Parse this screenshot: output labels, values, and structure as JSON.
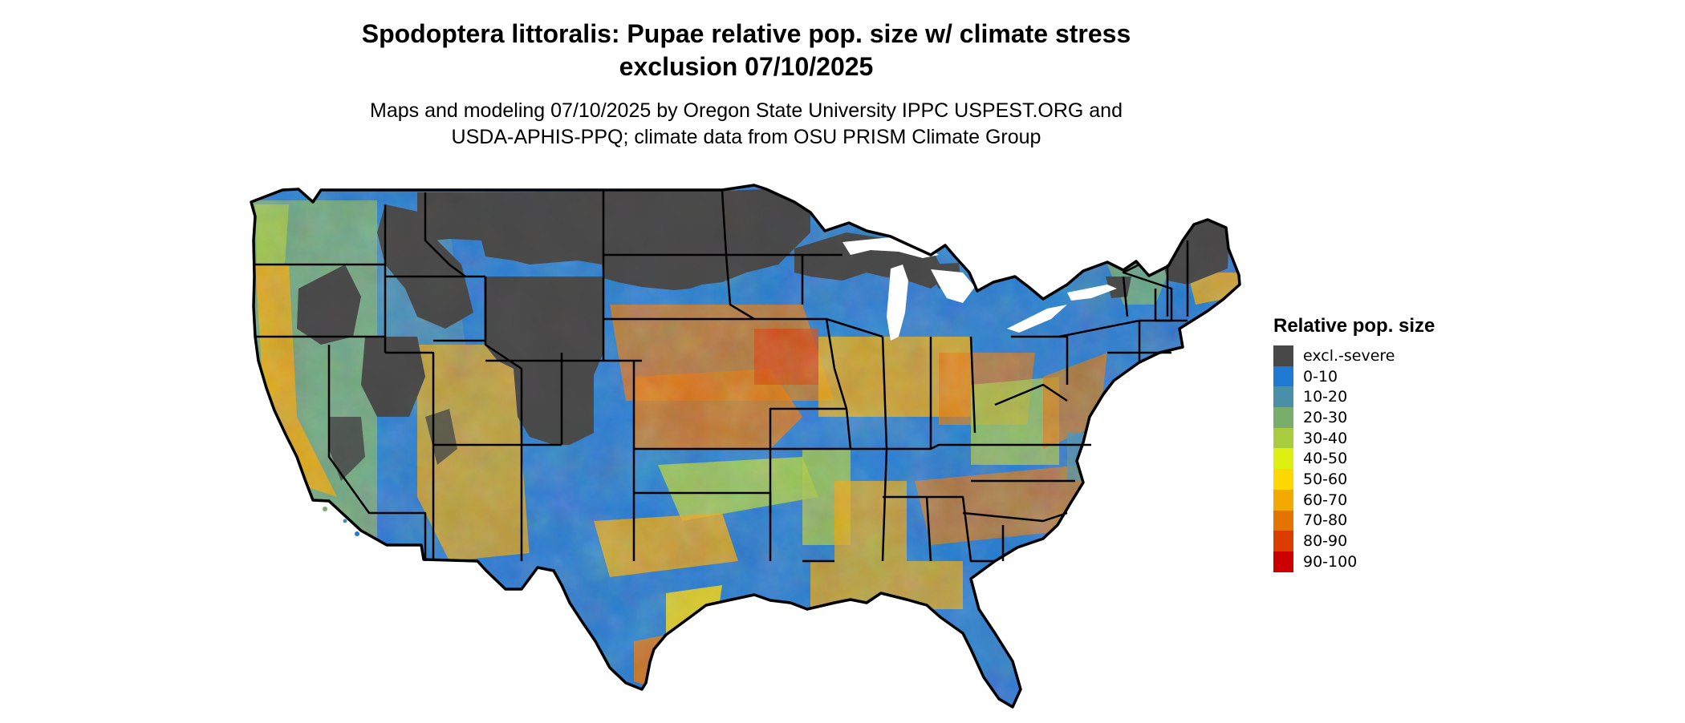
{
  "title": {
    "line1": "Spodoptera littoralis: Pupae relative pop. size w/ climate stress",
    "line2": "exclusion 07/10/2025"
  },
  "subtitle": {
    "line1": "Maps and modeling 07/10/2025 by Oregon State University IPPC USPEST.ORG and",
    "line2": "USDA-APHIS-PPQ; climate data from OSU PRISM Climate Group"
  },
  "legend": {
    "title": "Relative pop. size",
    "items": [
      {
        "label": "excl.-severe",
        "color": "#474747"
      },
      {
        "label": "0-10",
        "color": "#1f78d1"
      },
      {
        "label": "10-20",
        "color": "#4a8fa8"
      },
      {
        "label": "20-30",
        "color": "#79ad6d"
      },
      {
        "label": "30-40",
        "color": "#a8cc3e"
      },
      {
        "label": "40-50",
        "color": "#def012"
      },
      {
        "label": "50-60",
        "color": "#ffd700"
      },
      {
        "label": "60-70",
        "color": "#f2a900"
      },
      {
        "label": "70-80",
        "color": "#e57300"
      },
      {
        "label": "80-90",
        "color": "#db3c00"
      },
      {
        "label": "90-100",
        "color": "#cc0000"
      }
    ]
  }
}
